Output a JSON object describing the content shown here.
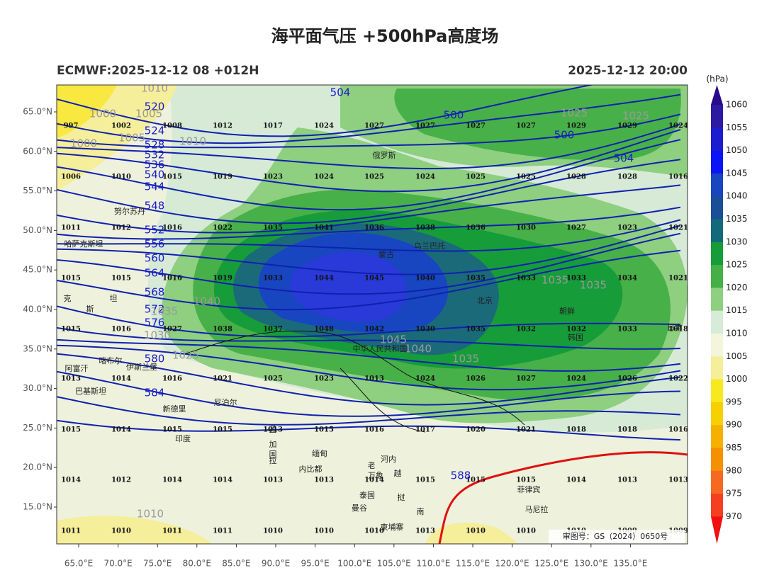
{
  "header": {
    "title": "海平面气压 +500hPa高度场",
    "model": "ECMWF:2025-12-12 08 +012H",
    "valid": "2025-12-12 20:00"
  },
  "axes": {
    "lat_labels": [
      "65.0°N",
      "60.0°N",
      "55.0°N",
      "50.0°N",
      "45.0°N",
      "40.0°N",
      "35.0°N",
      "30.0°N",
      "25.0°N",
      "20.0°N",
      "15.0°N"
    ],
    "lon_labels": [
      "65.0°E",
      "70.0°E",
      "75.0°E",
      "80.0°E",
      "85.0°E",
      "90.0°E",
      "95.0°E",
      "100.0°E",
      "105.0°E",
      "110.0°E",
      "115.0°E",
      "120.0°E",
      "125.0°E",
      "130.0°E",
      "135.0°E"
    ]
  },
  "colorbar": {
    "unit": "(hPa)",
    "levels": [
      1060,
      1055,
      1050,
      1045,
      1040,
      1035,
      1030,
      1025,
      1020,
      1015,
      1010,
      1005,
      1000,
      995,
      990,
      985,
      980,
      975,
      970
    ],
    "colors": [
      "#2a0a8a",
      "#2c1aa0",
      "#1d1dd0",
      "#0a14f5",
      "#1846c0",
      "#1a4e96",
      "#12697a",
      "#179c3a",
      "#45b045",
      "#8ecf80",
      "#d6ecd8",
      "#f3f6dc",
      "#f5ef9a",
      "#f8e820",
      "#f7d000",
      "#f5b000",
      "#f59000",
      "#f56a20",
      "#f44020",
      "#f01010"
    ]
  },
  "station_values": [
    [
      997,
      1002,
      1008,
      1012,
      1017,
      1024,
      1027,
      1027,
      1027,
      1027,
      1029,
      1029,
      1024
    ],
    [
      1006,
      1010,
      1015,
      1019,
      1023,
      1024,
      1025,
      1024,
      1025,
      1025,
      1028,
      1028,
      1016
    ],
    [
      1011,
      1012,
      1016,
      1022,
      1035,
      1041,
      1036,
      1038,
      1036,
      1030,
      1027,
      1023,
      1021
    ],
    [
      1015,
      1015,
      1016,
      1019,
      1033,
      1044,
      1045,
      1040,
      1035,
      1033,
      1033,
      1034,
      1021
    ],
    [
      1015,
      1016,
      1027,
      1038,
      1037,
      1048,
      1042,
      1030,
      1035,
      1032,
      1032,
      1033,
      1018
    ],
    [
      1013,
      1014,
      1016,
      1021,
      1025,
      1023,
      1013,
      1024,
      1026,
      1027,
      1024,
      1026,
      1022
    ],
    [
      1015,
      1014,
      1015,
      1015,
      1013,
      1015,
      1016,
      1017,
      1020,
      1021,
      1018,
      1018,
      1016
    ],
    [
      1014,
      1012,
      1014,
      1014,
      1013,
      1013,
      1014,
      1015,
      1015,
      1015,
      1014,
      1013,
      1013
    ],
    [
      1011,
      1010,
      1011,
      1011,
      1010,
      1010,
      1010,
      1013,
      1010,
      1010,
      1010,
      1009,
      1009
    ]
  ],
  "height_labels": [
    "504",
    "500",
    "500",
    "504",
    "520",
    "524",
    "528",
    "532",
    "536",
    "540",
    "544",
    "548",
    "552",
    "556",
    "560",
    "564",
    "568",
    "572",
    "576",
    "580",
    "584",
    "588"
  ],
  "isobar_labels": [
    "1010",
    "1000",
    "1005",
    "1000",
    "1005",
    "1010",
    "1025",
    "1025",
    "1035",
    "1035",
    "1040",
    "1035",
    "1030",
    "1025",
    "1045",
    "1040",
    "1035",
    "1010"
  ],
  "places": [
    "俄罗斯",
    "哈萨克斯坦",
    "蒙古",
    "乌兰巴托",
    "克",
    "斯",
    "坦",
    "朝鲜",
    "韩国",
    "日本",
    "中华人民共和国",
    "北京",
    "阿富汗",
    "巴基斯坦",
    "喀布尔",
    "伊斯兰堡",
    "新德里",
    "尼泊尔",
    "印度",
    "孟",
    "加",
    "拉",
    "国",
    "缅甸",
    "老",
    "越",
    "泰国",
    "挝",
    "南",
    "河内",
    "内比都",
    "万象",
    "曼谷",
    "柬埔寨",
    "菲律宾",
    "马尼拉",
    "努尔苏丹"
  ],
  "footer": "审图号：GS（2024）0650号"
}
